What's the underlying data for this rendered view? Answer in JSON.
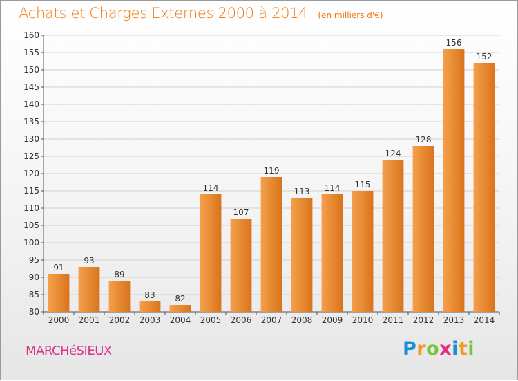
{
  "header": {
    "title": "Achats et Charges Externes 2000 à 2014",
    "unit": "(en milliers d'€)"
  },
  "footer": {
    "town": "MARCHéSIEUX",
    "logo_letters": [
      "P",
      "r",
      "o",
      "x",
      "i",
      "t",
      "i"
    ],
    "logo_colors": [
      "#1a8fd8",
      "#f29a1f",
      "#7cc242",
      "#e2307a",
      "#1a8fd8",
      "#f29a1f",
      "#7cc242"
    ]
  },
  "colors": {
    "title": "#f07a10",
    "bar_light": "#f5a04c",
    "bar_dark": "#d9741c",
    "grid": "#cfcfcf",
    "text": "#333333"
  },
  "chart_data": {
    "type": "bar",
    "categories": [
      "2000",
      "2001",
      "2002",
      "2003",
      "2004",
      "2005",
      "2006",
      "2007",
      "2008",
      "2009",
      "2010",
      "2011",
      "2012",
      "2013",
      "2014"
    ],
    "values": [
      91,
      93,
      89,
      83,
      82,
      114,
      107,
      119,
      113,
      114,
      115,
      124,
      128,
      156,
      152
    ],
    "title": "Achats et Charges Externes 2000 à 2014",
    "subtitle": "(en milliers d'€)",
    "xlabel": "",
    "ylabel": "",
    "ylim": [
      80,
      160
    ],
    "yticks": [
      80,
      85,
      90,
      95,
      100,
      105,
      110,
      115,
      120,
      125,
      130,
      135,
      140,
      145,
      150,
      155,
      160
    ],
    "grid": true,
    "data_labels": true
  }
}
